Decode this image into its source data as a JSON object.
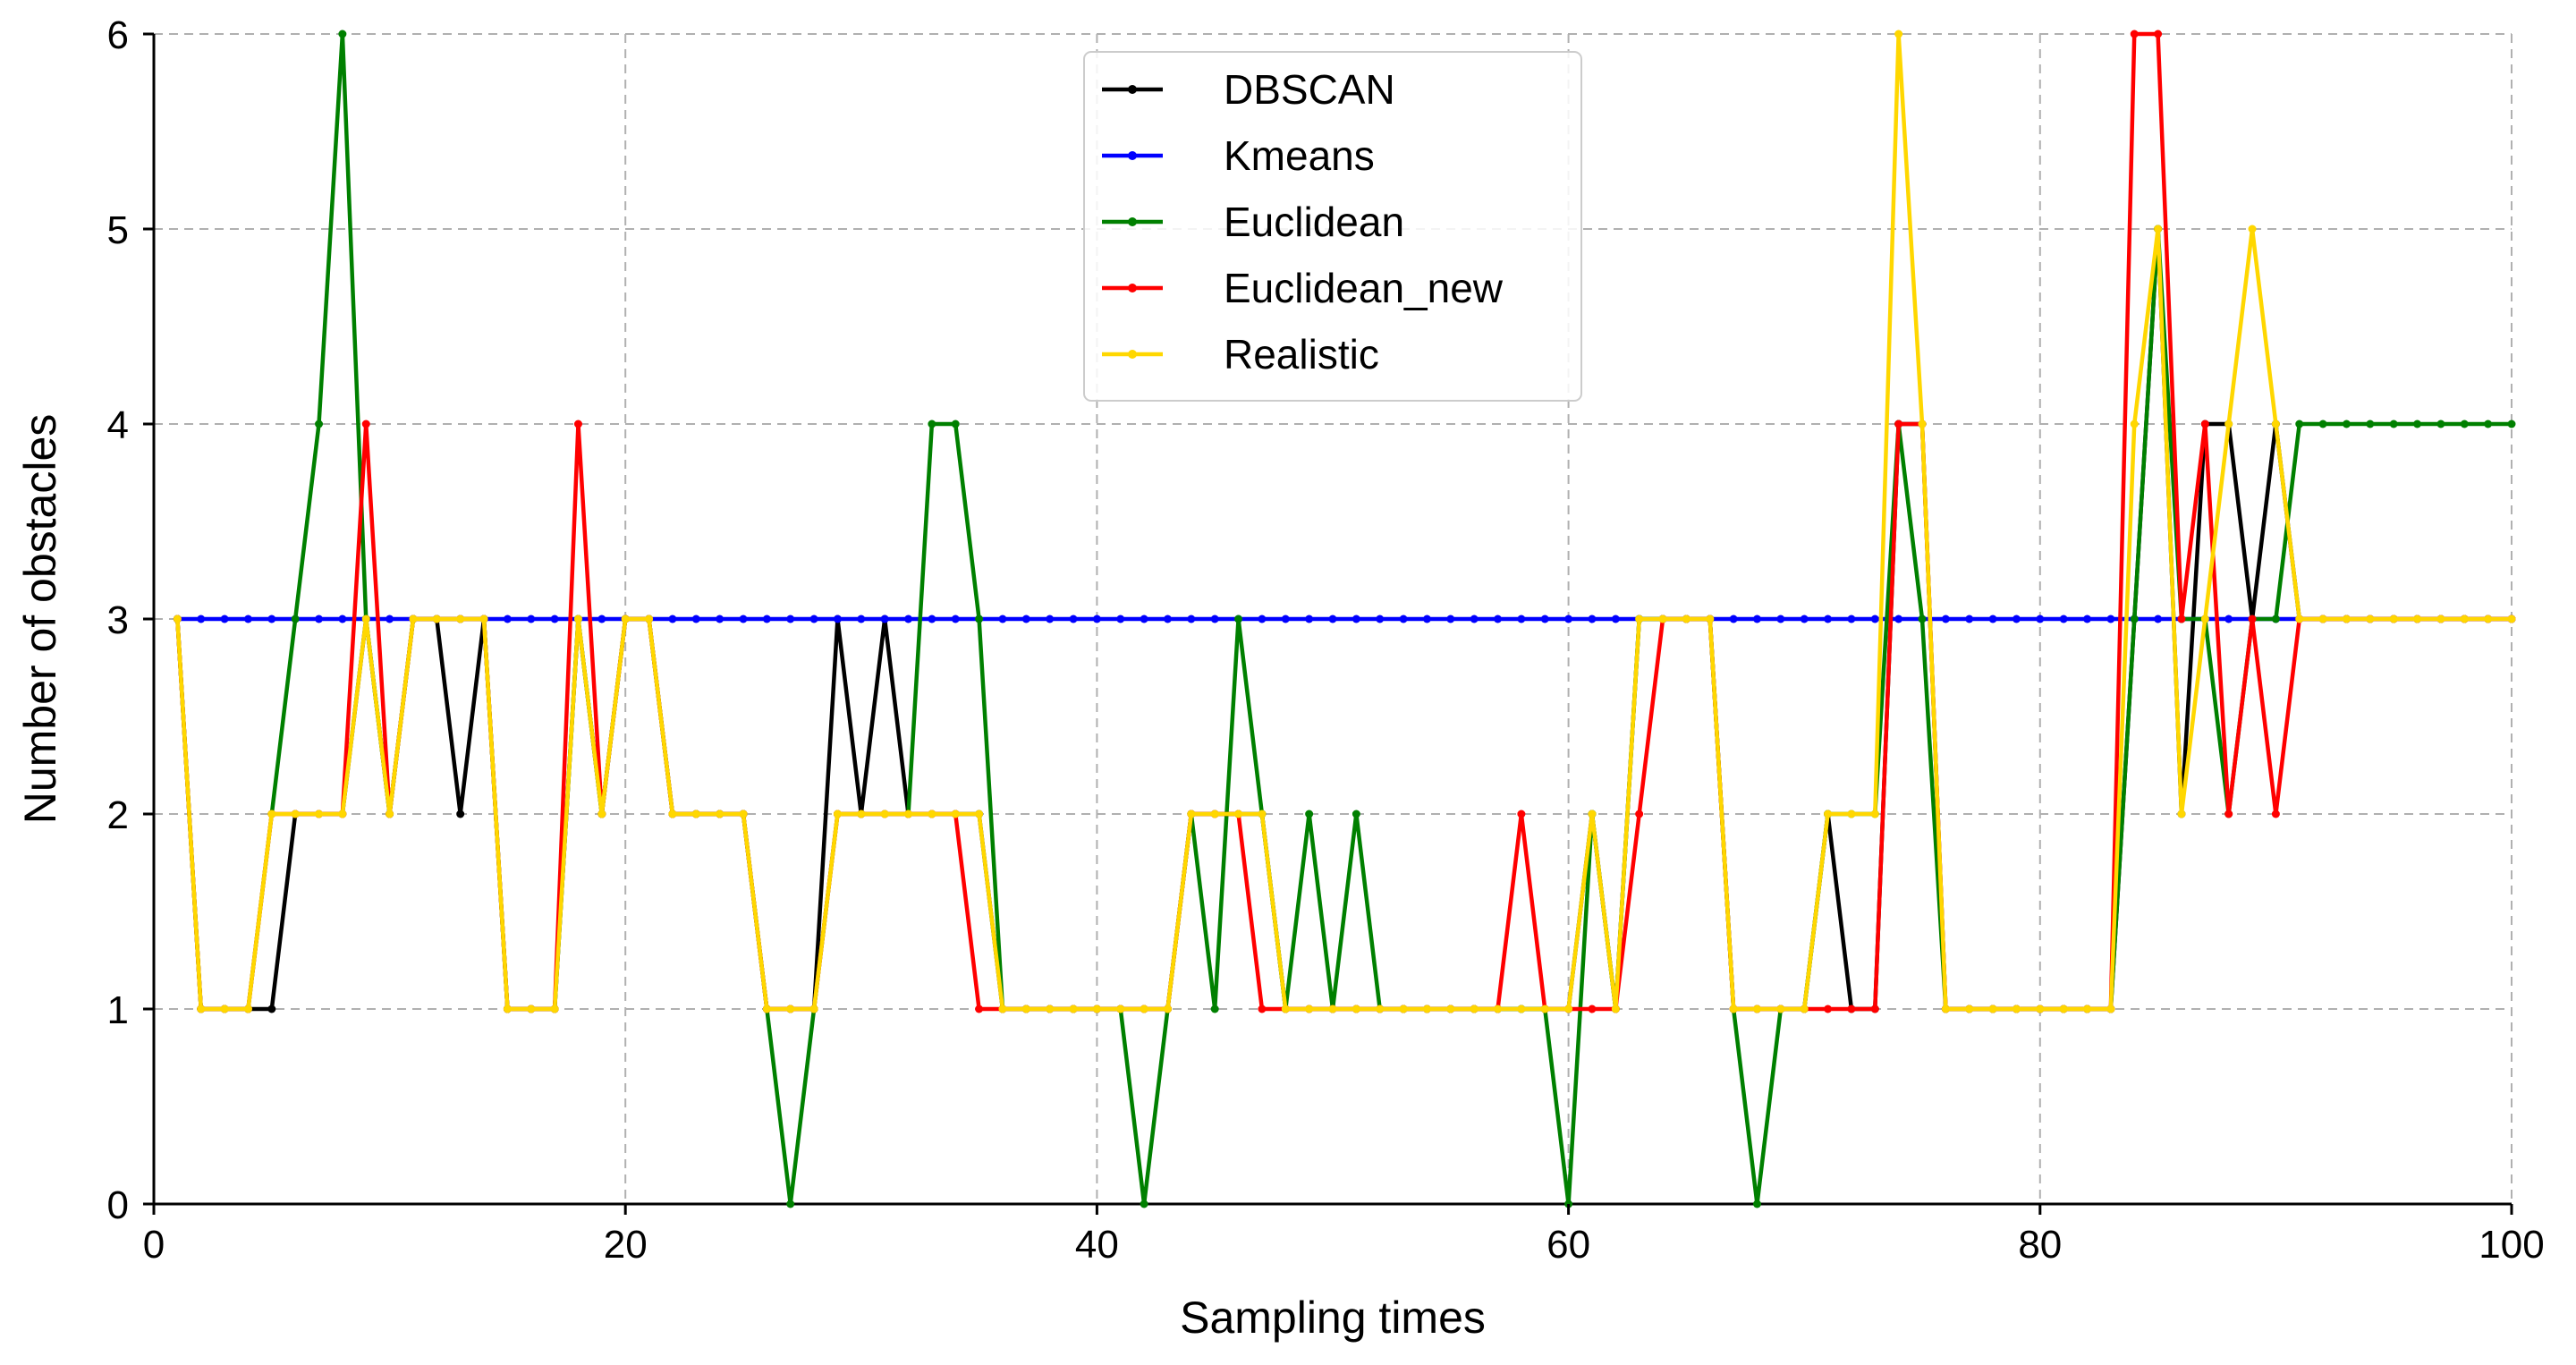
{
  "chart_data": {
    "type": "line",
    "xlabel": "Sampling times",
    "ylabel": "Number of obstacles",
    "xlim": [
      0,
      100
    ],
    "ylim": [
      0,
      6
    ],
    "xticks": [
      0,
      20,
      40,
      60,
      80,
      100
    ],
    "yticks": [
      0,
      1,
      2,
      3,
      4,
      5,
      6
    ],
    "grid": true,
    "grid_style": "dashed",
    "legend_position": "top-center",
    "x": [
      1,
      2,
      3,
      4,
      5,
      6,
      7,
      8,
      9,
      10,
      11,
      12,
      13,
      14,
      15,
      16,
      17,
      18,
      19,
      20,
      21,
      22,
      23,
      24,
      25,
      26,
      27,
      28,
      29,
      30,
      31,
      32,
      33,
      34,
      35,
      36,
      37,
      38,
      39,
      40,
      41,
      42,
      43,
      44,
      45,
      46,
      47,
      48,
      49,
      50,
      51,
      52,
      53,
      54,
      55,
      56,
      57,
      58,
      59,
      60,
      61,
      62,
      63,
      64,
      65,
      66,
      67,
      68,
      69,
      70,
      71,
      72,
      73,
      74,
      75,
      76,
      77,
      78,
      79,
      80,
      81,
      82,
      83,
      84,
      85,
      86,
      87,
      88,
      89,
      90,
      91,
      92,
      93,
      94,
      95,
      96,
      97,
      98,
      99,
      100
    ],
    "series": [
      {
        "name": "DBSCAN",
        "color": "#000000",
        "values": [
          3,
          1,
          1,
          1,
          1,
          2,
          2,
          2,
          3,
          2,
          3,
          3,
          2,
          3,
          1,
          1,
          1,
          3,
          2,
          3,
          3,
          2,
          2,
          2,
          2,
          1,
          1,
          1,
          3,
          2,
          3,
          2,
          2,
          2,
          2,
          1,
          1,
          1,
          1,
          1,
          1,
          1,
          1,
          2,
          2,
          2,
          2,
          1,
          1,
          1,
          1,
          1,
          1,
          1,
          1,
          1,
          1,
          1,
          1,
          1,
          2,
          1,
          3,
          3,
          3,
          3,
          1,
          1,
          1,
          1,
          2,
          1,
          1,
          4,
          4,
          1,
          1,
          1,
          1,
          1,
          1,
          1,
          1,
          3,
          5,
          2,
          4,
          4,
          3,
          4,
          3,
          3,
          3,
          3,
          3,
          3,
          3,
          3,
          3,
          3
        ]
      },
      {
        "name": "Kmeans",
        "color": "#0000ff",
        "values": [
          3,
          3,
          3,
          3,
          3,
          3,
          3,
          3,
          3,
          3,
          3,
          3,
          3,
          3,
          3,
          3,
          3,
          3,
          3,
          3,
          3,
          3,
          3,
          3,
          3,
          3,
          3,
          3,
          3,
          3,
          3,
          3,
          3,
          3,
          3,
          3,
          3,
          3,
          3,
          3,
          3,
          3,
          3,
          3,
          3,
          3,
          3,
          3,
          3,
          3,
          3,
          3,
          3,
          3,
          3,
          3,
          3,
          3,
          3,
          3,
          3,
          3,
          3,
          3,
          3,
          3,
          3,
          3,
          3,
          3,
          3,
          3,
          3,
          3,
          3,
          3,
          3,
          3,
          3,
          3,
          3,
          3,
          3,
          3,
          3,
          3,
          3,
          3,
          3,
          3,
          3,
          3,
          3,
          3,
          3,
          3,
          3,
          3,
          3,
          3
        ]
      },
      {
        "name": "Euclidean",
        "color": "#008000",
        "values": [
          3,
          1,
          1,
          1,
          2,
          3,
          4,
          6,
          3,
          2,
          3,
          3,
          3,
          3,
          1,
          1,
          1,
          3,
          2,
          3,
          3,
          2,
          2,
          2,
          2,
          1,
          0,
          1,
          2,
          2,
          2,
          2,
          4,
          4,
          3,
          1,
          1,
          1,
          1,
          1,
          1,
          0,
          1,
          2,
          1,
          3,
          2,
          1,
          2,
          1,
          2,
          1,
          1,
          1,
          1,
          1,
          1,
          1,
          1,
          0,
          2,
          1,
          3,
          3,
          3,
          3,
          1,
          0,
          1,
          1,
          2,
          2,
          2,
          4,
          3,
          1,
          1,
          1,
          1,
          1,
          1,
          1,
          1,
          3,
          5,
          3,
          3,
          2,
          3,
          3,
          4,
          4,
          4,
          4,
          4,
          4,
          4,
          4,
          4,
          4
        ]
      },
      {
        "name": "Euclidean_new",
        "color": "#ff0000",
        "values": [
          3,
          1,
          1,
          1,
          2,
          2,
          2,
          2,
          4,
          2,
          3,
          3,
          3,
          3,
          1,
          1,
          1,
          4,
          2,
          3,
          3,
          2,
          2,
          2,
          2,
          1,
          1,
          1,
          2,
          2,
          2,
          2,
          2,
          2,
          1,
          1,
          1,
          1,
          1,
          1,
          1,
          1,
          1,
          2,
          2,
          2,
          1,
          1,
          1,
          1,
          1,
          1,
          1,
          1,
          1,
          1,
          1,
          2,
          1,
          1,
          1,
          1,
          2,
          3,
          3,
          3,
          1,
          1,
          1,
          1,
          1,
          1,
          1,
          4,
          4,
          1,
          1,
          1,
          1,
          1,
          1,
          1,
          1,
          6,
          6,
          3,
          4,
          2,
          3,
          2,
          3,
          3,
          3,
          3,
          3,
          3,
          3,
          3,
          3,
          3
        ]
      },
      {
        "name": "Realistic",
        "color": "#ffd700",
        "values": [
          3,
          1,
          1,
          1,
          2,
          2,
          2,
          2,
          3,
          2,
          3,
          3,
          3,
          3,
          1,
          1,
          1,
          3,
          2,
          3,
          3,
          2,
          2,
          2,
          2,
          1,
          1,
          1,
          2,
          2,
          2,
          2,
          2,
          2,
          2,
          1,
          1,
          1,
          1,
          1,
          1,
          1,
          1,
          2,
          2,
          2,
          2,
          1,
          1,
          1,
          1,
          1,
          1,
          1,
          1,
          1,
          1,
          1,
          1,
          1,
          2,
          1,
          3,
          3,
          3,
          3,
          1,
          1,
          1,
          1,
          2,
          2,
          2,
          6,
          4,
          1,
          1,
          1,
          1,
          1,
          1,
          1,
          1,
          4,
          5,
          2,
          3,
          4,
          5,
          4,
          3,
          3,
          3,
          3,
          3,
          3,
          3,
          3,
          3,
          3
        ]
      }
    ]
  }
}
